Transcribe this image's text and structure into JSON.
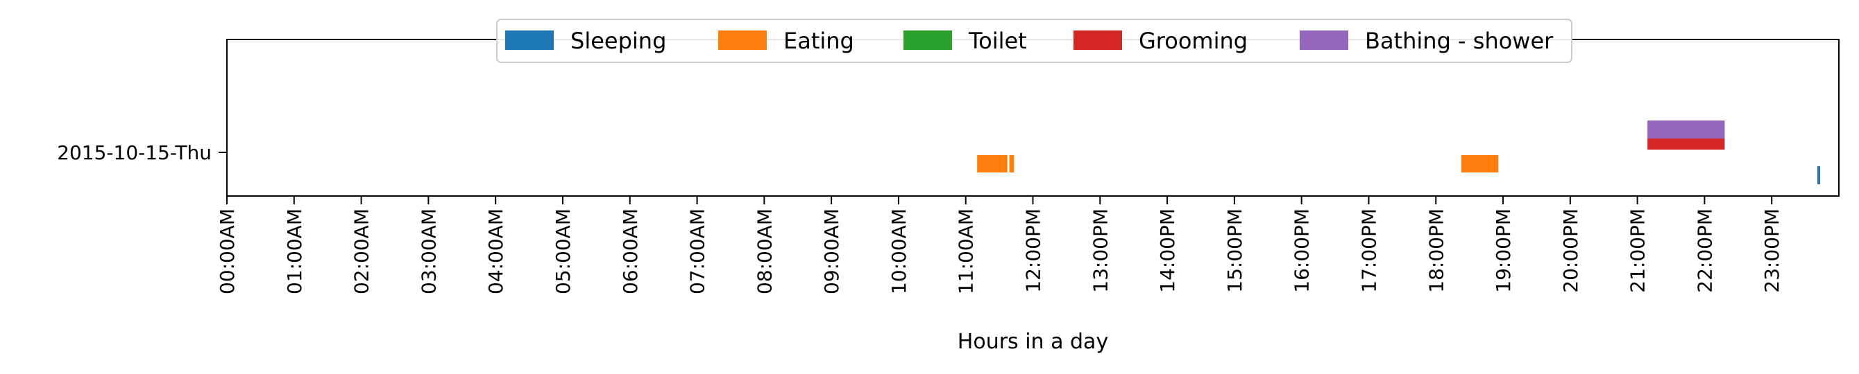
{
  "chart_data": {
    "type": "timeline",
    "xlabel": "Hours in a day",
    "xlim": [
      0,
      24
    ],
    "x_tick_labels": [
      "00:00AM",
      "01:00AM",
      "02:00AM",
      "03:00AM",
      "04:00AM",
      "05:00AM",
      "06:00AM",
      "07:00AM",
      "08:00AM",
      "09:00AM",
      "10:00AM",
      "11:00AM",
      "12:00PM",
      "13:00PM",
      "14:00PM",
      "15:00PM",
      "16:00PM",
      "17:00PM",
      "18:00PM",
      "19:00PM",
      "20:00PM",
      "21:00PM",
      "22:00PM",
      "23:00PM"
    ],
    "y_categories": [
      "2015-10-15-Thu"
    ],
    "legend_position": "top-center",
    "series": [
      {
        "name": "Sleeping",
        "color": "#1f77b4",
        "intervals": [
          [
            23.68,
            23.72
          ]
        ]
      },
      {
        "name": "Eating",
        "color": "#ff7f0e",
        "intervals": [
          [
            11.17,
            11.62
          ],
          [
            11.65,
            11.72
          ],
          [
            18.38,
            18.93
          ]
        ]
      },
      {
        "name": "Toilet",
        "color": "#2ca02c",
        "intervals": []
      },
      {
        "name": "Grooming",
        "color": "#d62728",
        "intervals": [
          [
            21.15,
            22.3
          ]
        ]
      },
      {
        "name": "Bathing - shower",
        "color": "#9467bd",
        "intervals": [
          [
            21.15,
            22.3
          ]
        ]
      }
    ]
  }
}
